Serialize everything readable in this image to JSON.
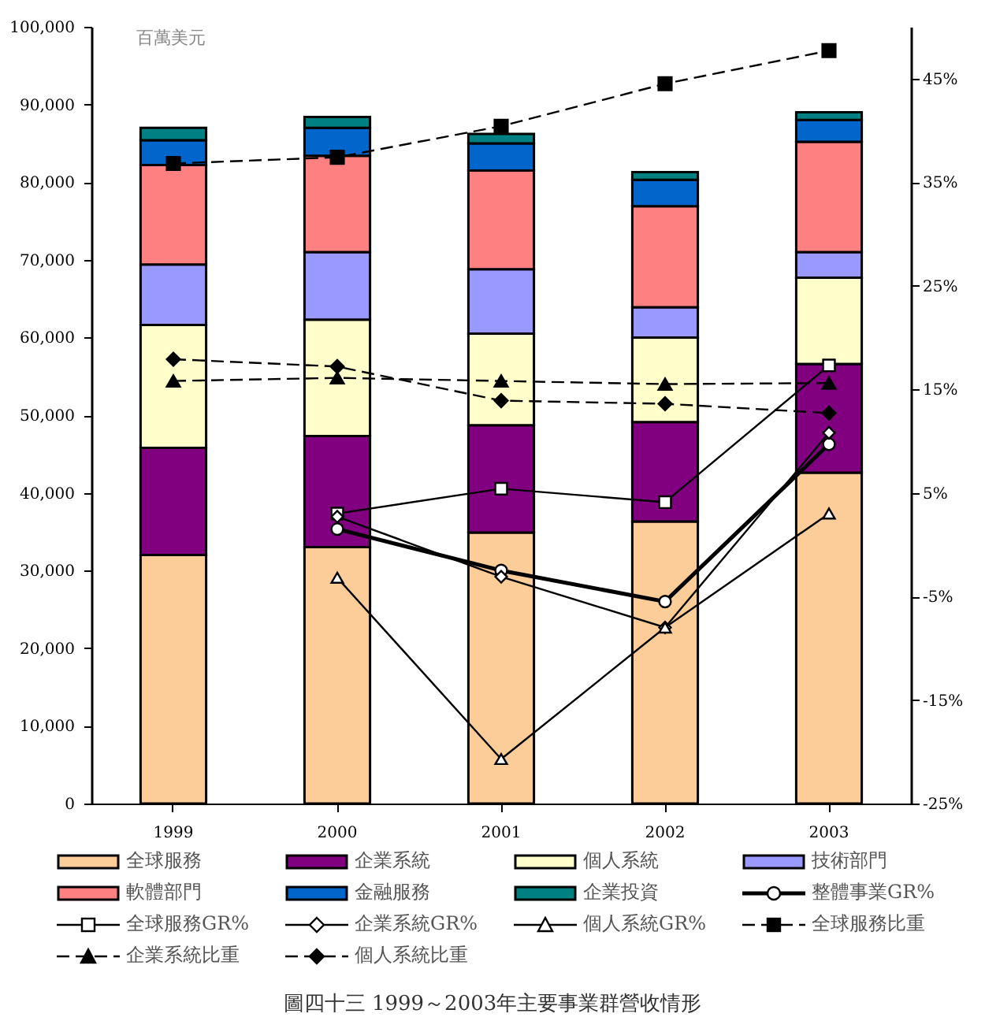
{
  "chart_data": {
    "type": "bar",
    "stacked": true,
    "ylabel": "百萬美元",
    "categories": [
      "1999",
      "2000",
      "2001",
      "2002",
      "2003"
    ],
    "ylim": [
      0,
      100000
    ],
    "yticks": [
      {
        "value": 0,
        "label": "0"
      },
      {
        "value": 10000,
        "label": "10,000"
      },
      {
        "value": 20000,
        "label": "20,000"
      },
      {
        "value": 30000,
        "label": "30,000"
      },
      {
        "value": 40000,
        "label": "40,000"
      },
      {
        "value": 50000,
        "label": "50,000"
      },
      {
        "value": 60000,
        "label": "60,000"
      },
      {
        "value": 70000,
        "label": "70,000"
      },
      {
        "value": 80000,
        "label": "80,000"
      },
      {
        "value": 90000,
        "label": "90,000"
      },
      {
        "value": 100000,
        "label": "100,000"
      }
    ],
    "y2lim": [
      -25,
      50
    ],
    "y2ticks": [
      {
        "value": -25,
        "label": "-25%"
      },
      {
        "value": -15,
        "label": "-15%"
      },
      {
        "value": -5,
        "label": "-5%"
      },
      {
        "value": 5,
        "label": "5%"
      },
      {
        "value": 15,
        "label": "15%"
      },
      {
        "value": 25,
        "label": "25%"
      },
      {
        "value": 35,
        "label": "35%"
      },
      {
        "value": 45,
        "label": "45%"
      }
    ],
    "grid": false,
    "legend": "bottom",
    "series": [
      {
        "name": "全球服務",
        "type": "bar",
        "color": "#fccc99",
        "values": [
          32000,
          33000,
          34900,
          36300,
          42600
        ]
      },
      {
        "name": "企業系統",
        "type": "bar",
        "color": "#800080",
        "values": [
          13800,
          14300,
          13800,
          12800,
          14000
        ]
      },
      {
        "name": "個人系統",
        "type": "bar",
        "color": "#ffffcc",
        "values": [
          15800,
          15000,
          11800,
          10900,
          11100
        ]
      },
      {
        "name": "技術部門",
        "type": "bar",
        "color": "#9999ff",
        "values": [
          7800,
          8700,
          8300,
          3900,
          3300
        ]
      },
      {
        "name": "軟體部門",
        "type": "bar",
        "color": "#ff8080",
        "values": [
          12800,
          12400,
          12700,
          13000,
          14200
        ]
      },
      {
        "name": "金融服務",
        "type": "bar",
        "color": "#0066cc",
        "values": [
          3200,
          3600,
          3500,
          3400,
          2800
        ]
      },
      {
        "name": "企業投資",
        "type": "bar",
        "color": "#008080",
        "values": [
          1600,
          1400,
          1200,
          1000,
          1000
        ]
      },
      {
        "name": "整體事業GR%",
        "type": "line",
        "axis": "y2",
        "color": "#000000",
        "marker": "circle",
        "line_style": "solid",
        "values": [
          null,
          1.5,
          -2.5,
          -5.5,
          9.7
        ]
      },
      {
        "name": "全球服務GR%",
        "type": "line",
        "axis": "y2",
        "color": "#000000",
        "marker": "square",
        "line_style": "solid",
        "values": [
          null,
          3.0,
          5.4,
          4.1,
          17.3
        ]
      },
      {
        "name": "企業系統GR%",
        "type": "line",
        "axis": "y2",
        "color": "#000000",
        "marker": "diamond",
        "line_style": "solid",
        "values": [
          null,
          2.7,
          -3.1,
          -8.0,
          10.8
        ]
      },
      {
        "name": "個人系統GR%",
        "type": "line",
        "axis": "y2",
        "color": "#000000",
        "marker": "triangle",
        "line_style": "solid",
        "values": [
          null,
          -3.2,
          -20.7,
          -8.0,
          3.0
        ]
      },
      {
        "name": "全球服務比重",
        "type": "line",
        "axis": "y2",
        "color": "#000000",
        "marker": "square",
        "line_style": "dashed",
        "values": [
          36.8,
          37.4,
          40.4,
          44.5,
          47.7
        ]
      },
      {
        "name": "企業系統比重",
        "type": "line",
        "axis": "y2",
        "color": "#000000",
        "marker": "triangle",
        "line_style": "dashed",
        "values": [
          15.8,
          16.1,
          15.8,
          15.5,
          15.6
        ]
      },
      {
        "name": "個人系統比重",
        "type": "line",
        "axis": "y2",
        "color": "#000000",
        "marker": "diamond",
        "line_style": "dashed",
        "values": [
          17.9,
          17.2,
          13.9,
          13.6,
          12.7
        ]
      }
    ],
    "annotations": [
      "圖四十三 1999～2003年主要事業群營收情形"
    ]
  }
}
